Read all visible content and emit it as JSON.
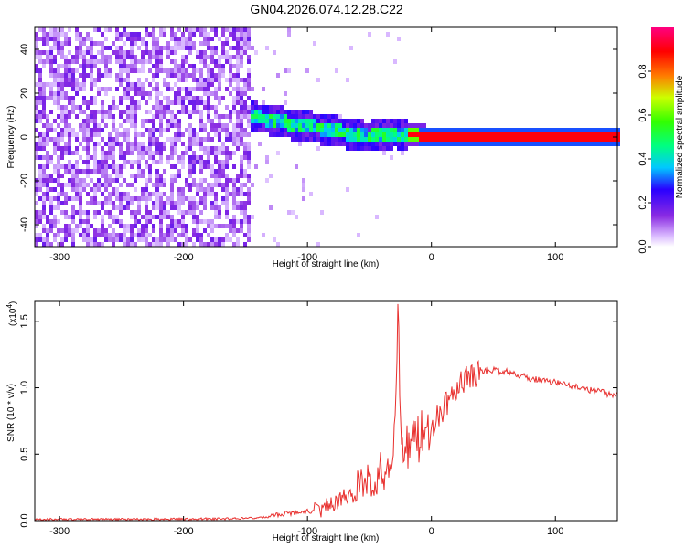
{
  "title": "GN04.2026.074.12.28.C22",
  "chart_data": [
    {
      "type": "heatmap",
      "xlabel": "Height of straight line (km)",
      "ylabel": "Frequency (Hz)",
      "xlim": [
        -320,
        150
      ],
      "ylim": [
        -50,
        50
      ],
      "xticks": [
        -300,
        -200,
        -100,
        0,
        100
      ],
      "yticks": [
        -40,
        -20,
        0,
        20,
        40
      ],
      "colorbar": {
        "label": "Normalized spectral amplitude",
        "range": [
          0,
          1
        ],
        "ticks": [
          "0.0",
          "0.2",
          "0.4",
          "0.6",
          "0.8"
        ],
        "colormap": "rainbow (white → violet → blue → cyan → green → yellow → red → magenta)"
      },
      "ridge": {
        "x": [
          -145,
          -130,
          -115,
          -100,
          -90,
          -80,
          -70,
          -60,
          -50,
          -40,
          -30,
          -20,
          0,
          50,
          100,
          150
        ],
        "frequency": [
          9,
          8,
          6,
          5,
          4,
          3,
          2,
          1,
          0,
          1,
          2,
          1,
          0,
          0,
          0,
          0
        ]
      },
      "noise_region_x": [
        -320,
        -145
      ]
    },
    {
      "type": "line",
      "xlabel": "Height of straight line (km)",
      "ylabel": "SNR (10 * v/v)",
      "yscale_label": "(x10",
      "yscale_exp": "4",
      "yscale_close": ")",
      "xlim": [
        -320,
        150
      ],
      "ylim": [
        0,
        1.65
      ],
      "xticks": [
        -300,
        -200,
        -100,
        0,
        100
      ],
      "yticks": [
        0.0,
        0.5,
        1.0,
        1.5
      ],
      "color": "#e8302e",
      "series": [
        {
          "x": [
            -320,
            -280,
            -240,
            -200,
            -160,
            -140,
            -130,
            -120,
            -110,
            -100,
            -90,
            -80,
            -70,
            -60,
            -55,
            -50,
            -45,
            -40,
            -35,
            -30,
            -27,
            -24,
            -20,
            -15,
            -10,
            -5,
            0,
            5,
            10,
            15,
            20,
            30,
            40,
            50,
            60,
            70,
            80,
            90,
            100,
            110,
            120,
            130,
            140,
            150
          ],
          "values": [
            0.01,
            0.01,
            0.01,
            0.012,
            0.015,
            0.02,
            0.03,
            0.05,
            0.06,
            0.07,
            0.08,
            0.12,
            0.18,
            0.2,
            0.22,
            0.25,
            0.35,
            0.4,
            0.45,
            0.55,
            1.62,
            0.55,
            0.55,
            0.6,
            0.62,
            0.65,
            0.7,
            0.78,
            0.85,
            0.93,
            1.0,
            1.08,
            1.12,
            1.13,
            1.12,
            1.1,
            1.07,
            1.05,
            1.04,
            1.02,
            1.0,
            0.98,
            0.96,
            0.94
          ]
        }
      ]
    }
  ]
}
